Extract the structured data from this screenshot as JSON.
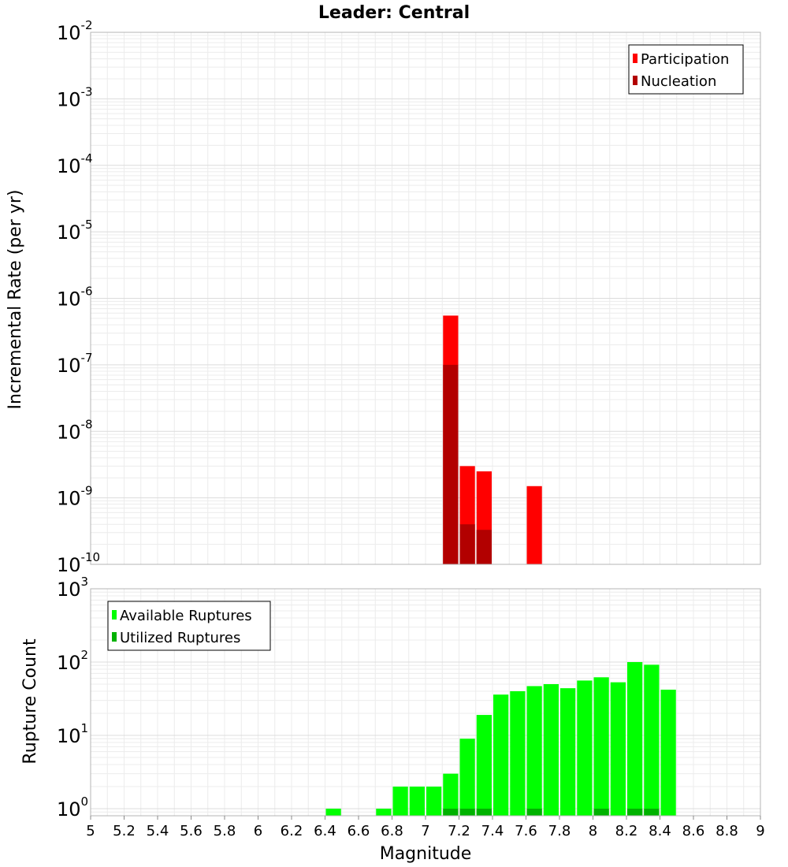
{
  "title": "Leader: Central",
  "colors": {
    "participation": "#ff0000",
    "nucleation": "#b20000",
    "available": "#00ff00",
    "utilized": "#00b200",
    "grid": "#e6e6e6",
    "frame": "#b4b4b4"
  },
  "chart_data": [
    {
      "type": "bar",
      "scale": "log",
      "ylabel": "Incremental Rate (per yr)",
      "xlabel": "",
      "xlim": [
        5,
        9
      ],
      "ylim": [
        1e-10,
        0.01
      ],
      "y_ticks": [
        {
          "base": "10",
          "exp": "-2"
        },
        {
          "base": "10",
          "exp": "-3"
        },
        {
          "base": "10",
          "exp": "-4"
        },
        {
          "base": "10",
          "exp": "-5"
        },
        {
          "base": "10",
          "exp": "-6"
        },
        {
          "base": "10",
          "exp": "-7"
        },
        {
          "base": "10",
          "exp": "-8"
        },
        {
          "base": "10",
          "exp": "-9"
        },
        {
          "base": "10",
          "exp": "-10"
        }
      ],
      "legend_position": "top-right",
      "series": [
        {
          "name": "Participation",
          "x": [
            7.15,
            7.25,
            7.35,
            7.65
          ],
          "values": [
            5.5e-07,
            3e-09,
            2.5e-09,
            1.5e-09
          ]
        },
        {
          "name": "Nucleation",
          "x": [
            7.15,
            7.25,
            7.35
          ],
          "values": [
            1e-07,
            4e-10,
            3.3e-10
          ]
        }
      ]
    },
    {
      "type": "bar",
      "scale": "log",
      "ylabel": "Rupture Count",
      "xlabel": "Magnitude",
      "xlim": [
        5,
        9
      ],
      "ylim": [
        0.8,
        1000
      ],
      "y_ticks": [
        {
          "base": "10",
          "exp": "3",
          "value": 1000
        },
        {
          "base": "10",
          "exp": "2",
          "value": 100
        },
        {
          "base": "10",
          "exp": "1",
          "value": 10
        },
        {
          "base": "10",
          "exp": "0",
          "value": 1
        }
      ],
      "x_ticks": [
        "5",
        "5.2",
        "5.4",
        "5.6",
        "5.8",
        "6",
        "6.2",
        "6.4",
        "6.6",
        "6.8",
        "7",
        "7.2",
        "7.4",
        "7.6",
        "7.8",
        "8",
        "8.2",
        "8.4",
        "8.6",
        "8.8",
        "9"
      ],
      "legend_position": "top-left",
      "series": [
        {
          "name": "Available Ruptures",
          "x": [
            6.45,
            6.75,
            6.85,
            6.95,
            7.05,
            7.15,
            7.25,
            7.35,
            7.45,
            7.55,
            7.65,
            7.75,
            7.85,
            7.95,
            8.05,
            8.15,
            8.25,
            8.35,
            8.45
          ],
          "values": [
            1,
            1,
            2,
            2,
            2,
            3,
            9,
            19,
            36,
            40,
            47,
            50,
            44,
            56,
            62,
            53,
            100,
            92,
            42
          ]
        },
        {
          "name": "Utilized Ruptures",
          "x": [
            7.15,
            7.25,
            7.35,
            7.65,
            8.05,
            8.25,
            8.35
          ],
          "values": [
            1,
            1,
            1,
            1,
            1,
            1,
            1
          ]
        }
      ]
    }
  ]
}
